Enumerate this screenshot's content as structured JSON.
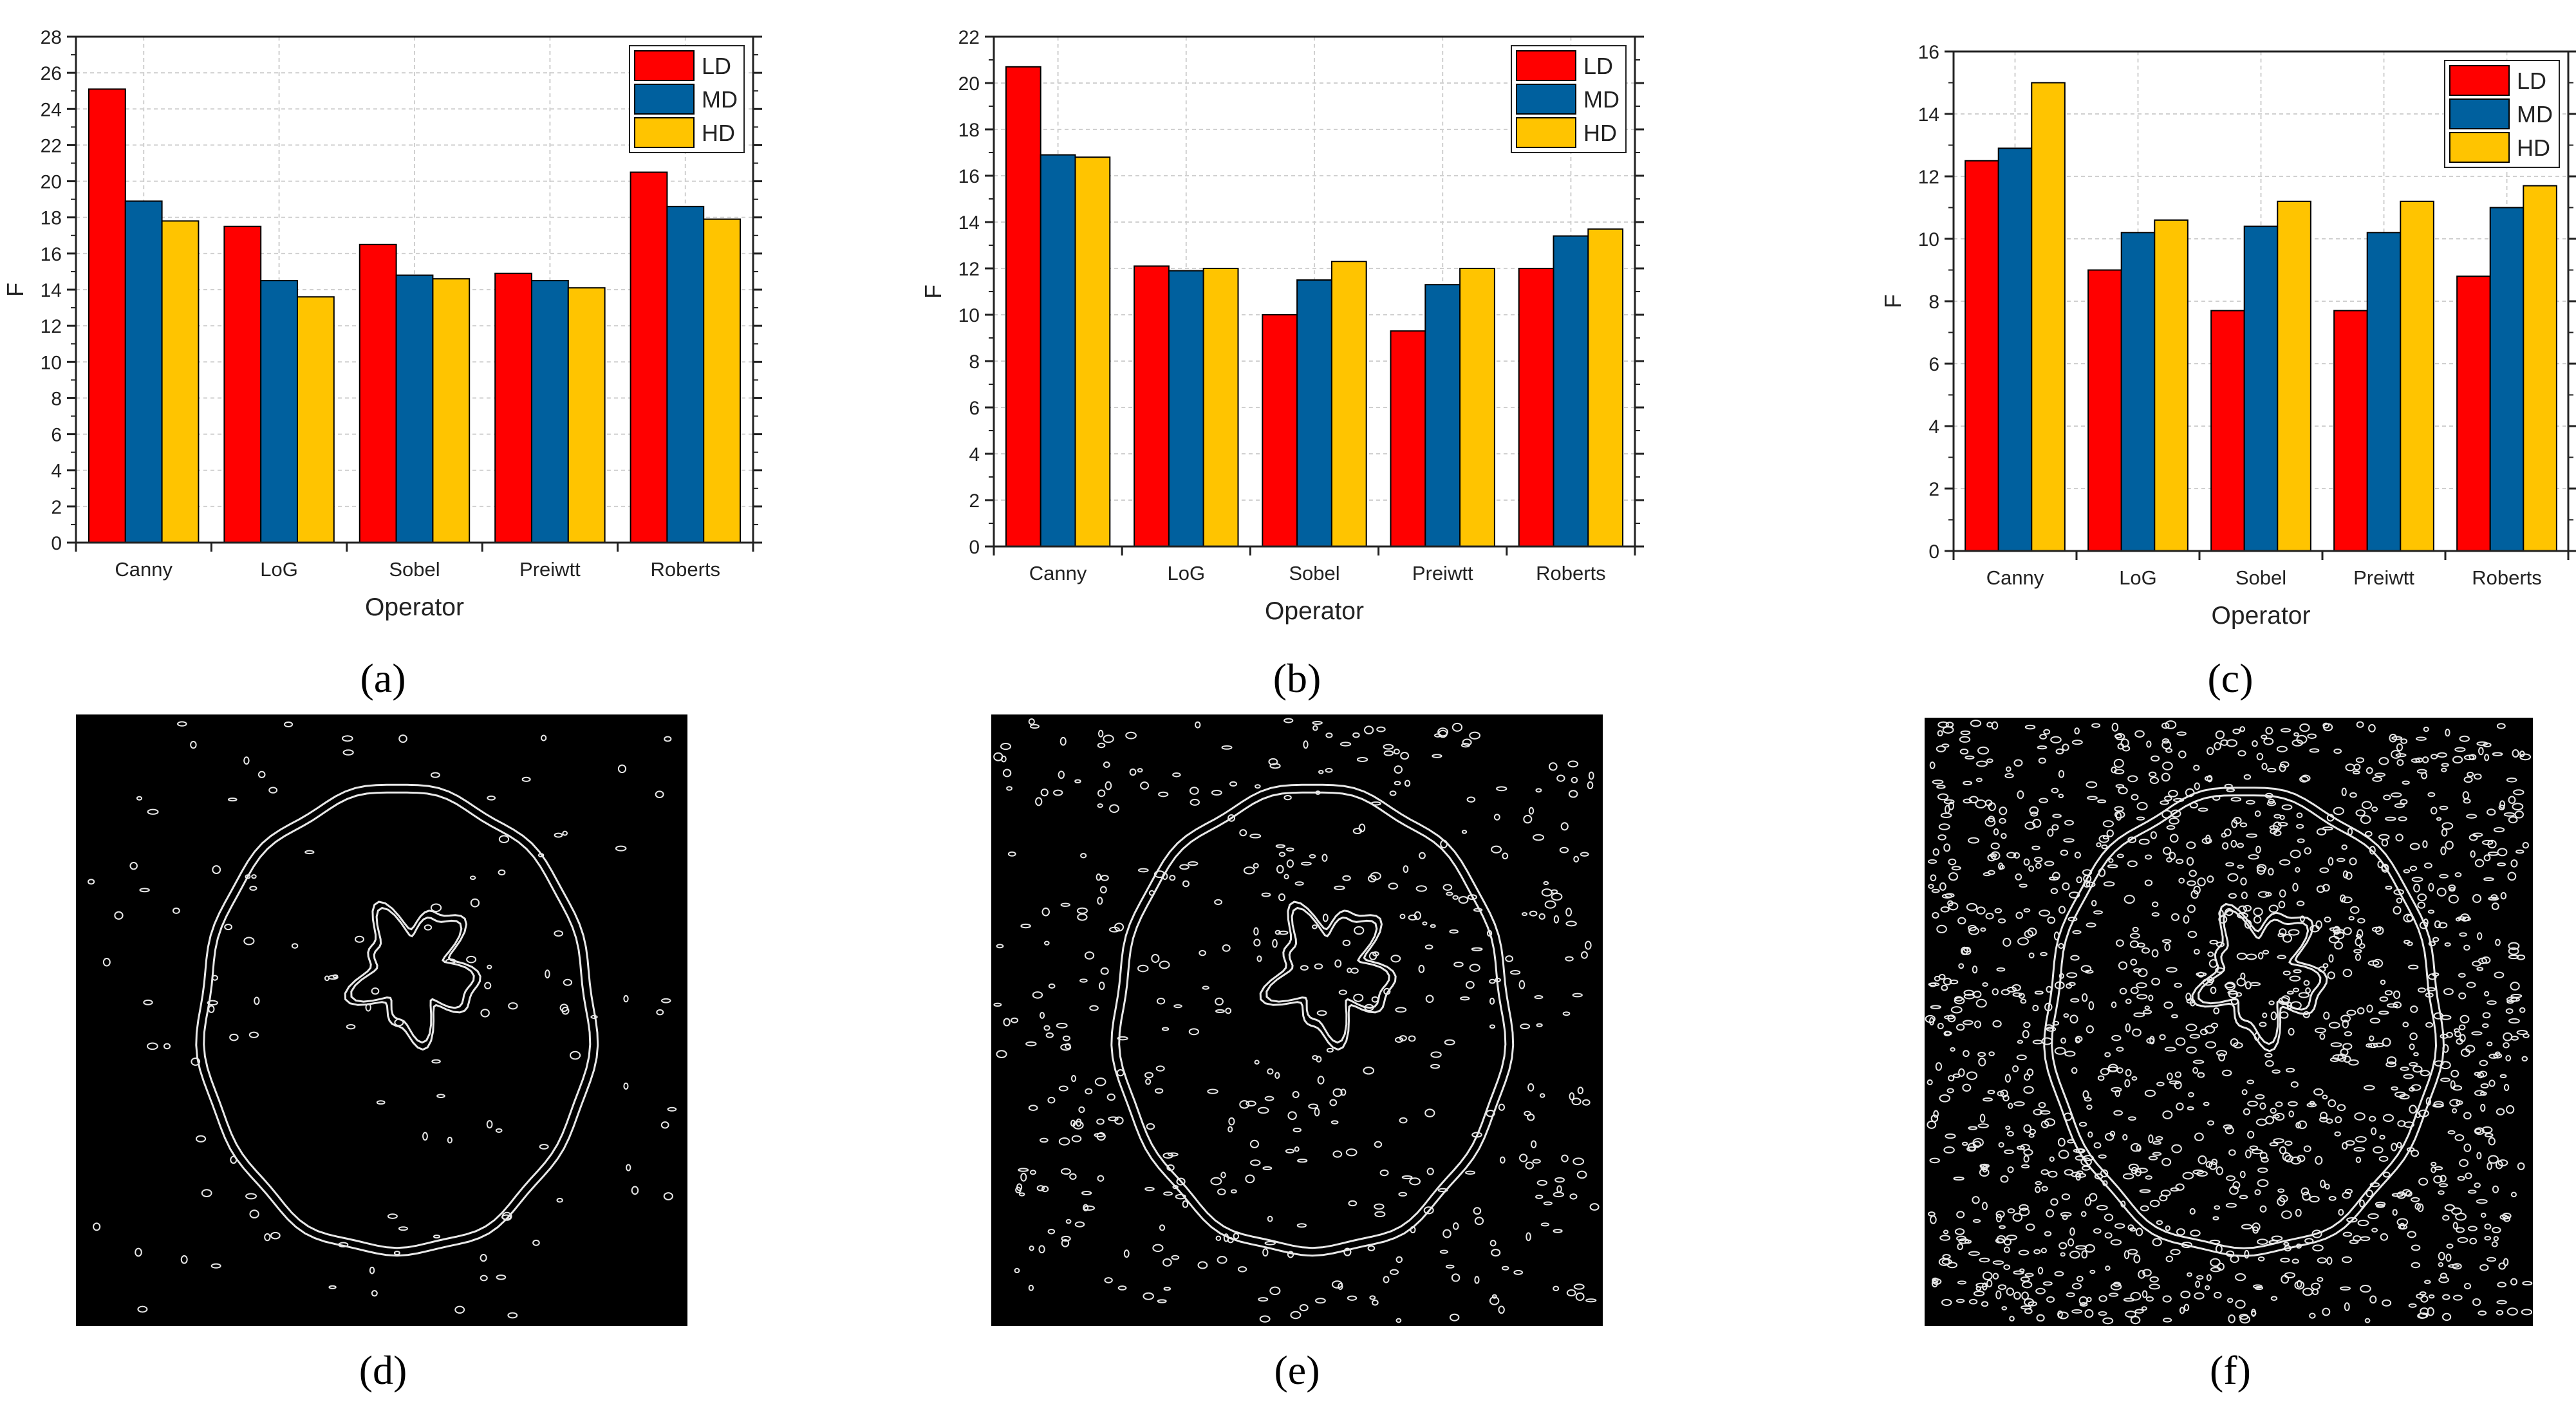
{
  "chart_data": [
    {
      "type": "bar",
      "categories": [
        "Canny",
        "LoG",
        "Sobel",
        "Preiwtt",
        "Roberts"
      ],
      "series": [
        {
          "name": "LD",
          "values": [
            25.1,
            17.5,
            16.5,
            14.9,
            20.5
          ]
        },
        {
          "name": "MD",
          "values": [
            18.9,
            14.5,
            14.8,
            14.5,
            18.6
          ]
        },
        {
          "name": "HD",
          "values": [
            17.8,
            13.6,
            14.6,
            14.1,
            17.9
          ]
        }
      ],
      "xlabel": "Operator",
      "ylabel": "F",
      "ylim": [
        0,
        28
      ],
      "yticks": [
        0,
        2,
        4,
        6,
        8,
        10,
        12,
        14,
        16,
        18,
        20,
        22,
        24,
        26,
        28
      ],
      "grid": true,
      "legend": "top-right",
      "caption": "(a)"
    },
    {
      "type": "bar",
      "categories": [
        "Canny",
        "LoG",
        "Sobel",
        "Preiwtt",
        "Roberts"
      ],
      "series": [
        {
          "name": "LD",
          "values": [
            20.7,
            12.1,
            10.0,
            9.3,
            12.0
          ]
        },
        {
          "name": "MD",
          "values": [
            16.9,
            11.9,
            11.5,
            11.3,
            13.4
          ]
        },
        {
          "name": "HD",
          "values": [
            16.8,
            12.0,
            12.3,
            12.0,
            13.7
          ]
        }
      ],
      "xlabel": "Operator",
      "ylabel": "F",
      "ylim": [
        0,
        22
      ],
      "yticks": [
        0,
        2,
        4,
        6,
        8,
        10,
        12,
        14,
        16,
        18,
        20,
        22
      ],
      "grid": true,
      "legend": "top-right",
      "caption": "(b)"
    },
    {
      "type": "bar",
      "categories": [
        "Canny",
        "LoG",
        "Sobel",
        "Preiwtt",
        "Roberts"
      ],
      "series": [
        {
          "name": "LD",
          "values": [
            12.5,
            9.0,
            7.7,
            7.7,
            8.8
          ]
        },
        {
          "name": "MD",
          "values": [
            12.9,
            10.2,
            10.4,
            10.2,
            11.0
          ]
        },
        {
          "name": "HD",
          "values": [
            15.0,
            10.6,
            11.2,
            11.2,
            11.7
          ]
        }
      ],
      "xlabel": "Operator",
      "ylabel": "F",
      "ylim": [
        0,
        16
      ],
      "yticks": [
        0,
        2,
        4,
        6,
        8,
        10,
        12,
        14,
        16
      ],
      "grid": true,
      "legend": "top-right",
      "caption": "(c)"
    }
  ],
  "images": [
    {
      "caption": "(d)",
      "noise_level": "low"
    },
    {
      "caption": "(e)",
      "noise_level": "medium"
    },
    {
      "caption": "(f)",
      "noise_level": "high"
    }
  ],
  "colors": {
    "LD": "#ff0000",
    "MD": "#00609e",
    "HD": "#ffc400",
    "grid": "#d0d0d0",
    "image_bg": "#000000",
    "edge": "#e8e8e8"
  }
}
